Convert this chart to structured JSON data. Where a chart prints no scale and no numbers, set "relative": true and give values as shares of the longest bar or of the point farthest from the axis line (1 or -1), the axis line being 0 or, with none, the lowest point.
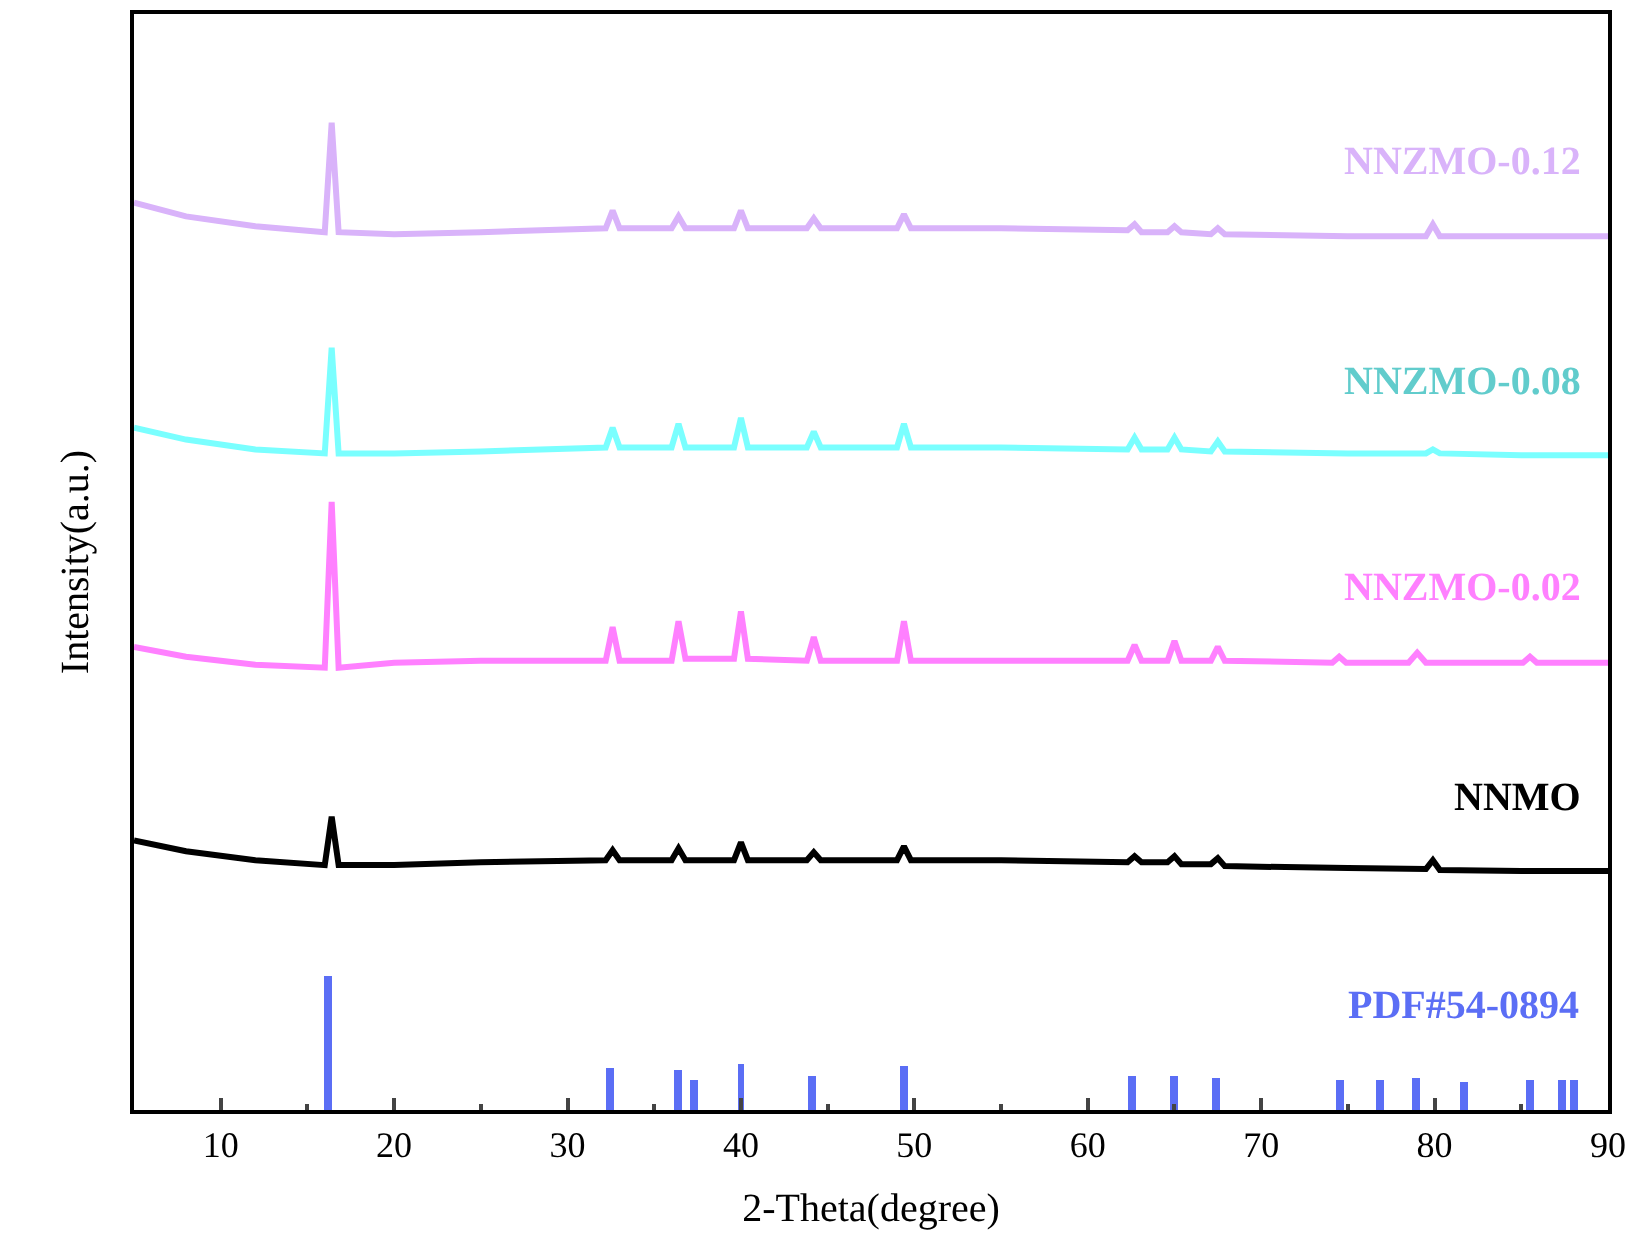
{
  "chart_data": {
    "type": "line",
    "relative": true,
    "xlabel": "2-Theta(degree)",
    "ylabel": "Intensity(a.u.)",
    "xlim": [
      5,
      90
    ],
    "xticks": [
      10,
      20,
      30,
      40,
      50,
      60,
      70,
      80,
      90
    ],
    "legend": false,
    "marker": "none",
    "line_style": "solid",
    "series": [
      {
        "name": "NNZMO-0.12",
        "color": "#d9b3fa",
        "x": [
          5,
          8,
          12,
          16,
          16.4,
          16.8,
          20,
          25,
          32.2,
          32.6,
          33,
          36,
          36.4,
          36.8,
          39.6,
          40,
          40.4,
          43.8,
          44.2,
          44.6,
          49,
          49.4,
          49.8,
          55,
          62.3,
          62.7,
          63.1,
          64.6,
          65,
          65.4,
          67.1,
          67.5,
          67.9,
          75,
          79.5,
          79.9,
          80.3,
          85,
          90
        ],
        "values": [
          0.919,
          0.905,
          0.895,
          0.889,
          1.0,
          0.889,
          0.887,
          0.889,
          0.893,
          0.911,
          0.893,
          0.893,
          0.905,
          0.893,
          0.893,
          0.911,
          0.893,
          0.893,
          0.903,
          0.893,
          0.893,
          0.907,
          0.893,
          0.893,
          0.891,
          0.897,
          0.889,
          0.889,
          0.895,
          0.889,
          0.887,
          0.893,
          0.887,
          0.885,
          0.885,
          0.897,
          0.885,
          0.885,
          0.885
        ]
      },
      {
        "name": "NNZMO-0.08",
        "color": "#7affff",
        "x": [
          5,
          8,
          12,
          16,
          16.4,
          16.8,
          20,
          25,
          32.2,
          32.6,
          33,
          36,
          36.4,
          36.8,
          39.6,
          40,
          40.4,
          43.8,
          44.2,
          44.6,
          49,
          49.4,
          49.8,
          55,
          62.3,
          62.7,
          63.1,
          64.6,
          65,
          65.4,
          67.1,
          67.5,
          67.9,
          75,
          79.5,
          79.9,
          80.3,
          85,
          90
        ],
        "values": [
          0.691,
          0.679,
          0.669,
          0.665,
          0.772,
          0.665,
          0.665,
          0.667,
          0.671,
          0.691,
          0.671,
          0.671,
          0.695,
          0.671,
          0.671,
          0.701,
          0.671,
          0.671,
          0.687,
          0.671,
          0.671,
          0.695,
          0.671,
          0.671,
          0.669,
          0.681,
          0.669,
          0.669,
          0.681,
          0.669,
          0.667,
          0.677,
          0.667,
          0.665,
          0.665,
          0.669,
          0.665,
          0.663,
          0.663
        ]
      },
      {
        "name": "NNZMO-0.02",
        "color": "#ff80ff",
        "x": [
          5,
          8,
          12,
          16,
          16.4,
          16.8,
          20,
          25,
          32.2,
          32.6,
          33,
          36,
          36.4,
          36.8,
          39.6,
          40,
          40.4,
          43.8,
          44.2,
          44.6,
          49,
          49.4,
          49.8,
          55,
          62.3,
          62.7,
          63.1,
          64.6,
          65,
          65.4,
          67.1,
          67.5,
          67.9,
          74.1,
          74.5,
          74.9,
          78.5,
          79,
          79.5,
          85.1,
          85.5,
          85.9,
          90
        ],
        "values": [
          0.469,
          0.459,
          0.451,
          0.448,
          0.616,
          0.448,
          0.453,
          0.455,
          0.455,
          0.489,
          0.455,
          0.455,
          0.495,
          0.457,
          0.457,
          0.505,
          0.457,
          0.455,
          0.479,
          0.455,
          0.455,
          0.495,
          0.455,
          0.455,
          0.455,
          0.471,
          0.455,
          0.455,
          0.475,
          0.455,
          0.455,
          0.469,
          0.455,
          0.453,
          0.459,
          0.453,
          0.453,
          0.463,
          0.453,
          0.453,
          0.459,
          0.453,
          0.453
        ]
      },
      {
        "name": "NNMO",
        "color": "#000000",
        "x": [
          5,
          8,
          12,
          16,
          16.4,
          16.8,
          20,
          25,
          32.2,
          32.6,
          33,
          36,
          36.4,
          36.8,
          39.6,
          40,
          40.4,
          43.8,
          44.2,
          44.6,
          49,
          49.4,
          49.8,
          55,
          62.3,
          62.7,
          63.1,
          64.6,
          65,
          65.4,
          67.1,
          67.5,
          67.9,
          75,
          79.5,
          79.9,
          80.3,
          85,
          90
        ],
        "values": [
          0.273,
          0.262,
          0.253,
          0.248,
          0.297,
          0.248,
          0.248,
          0.251,
          0.253,
          0.263,
          0.253,
          0.253,
          0.265,
          0.253,
          0.253,
          0.271,
          0.253,
          0.253,
          0.261,
          0.253,
          0.253,
          0.267,
          0.253,
          0.253,
          0.251,
          0.257,
          0.251,
          0.251,
          0.257,
          0.249,
          0.249,
          0.255,
          0.247,
          0.245,
          0.244,
          0.253,
          0.243,
          0.242,
          0.242
        ]
      },
      {
        "name": "PDF#54-0894",
        "type": "bar",
        "color": "#5b6ef5",
        "x": [
          16.2,
          32.5,
          36.4,
          37.3,
          40,
          44.1,
          49.4,
          62.5,
          65,
          67.4,
          74.5,
          76.8,
          78.9,
          81.7,
          85.5,
          87.3,
          88
        ],
        "values": [
          0.135,
          0.042,
          0.04,
          0.03,
          0.046,
          0.034,
          0.044,
          0.034,
          0.034,
          0.032,
          0.03,
          0.03,
          0.032,
          0.028,
          0.03,
          0.03,
          0.03
        ]
      }
    ]
  }
}
